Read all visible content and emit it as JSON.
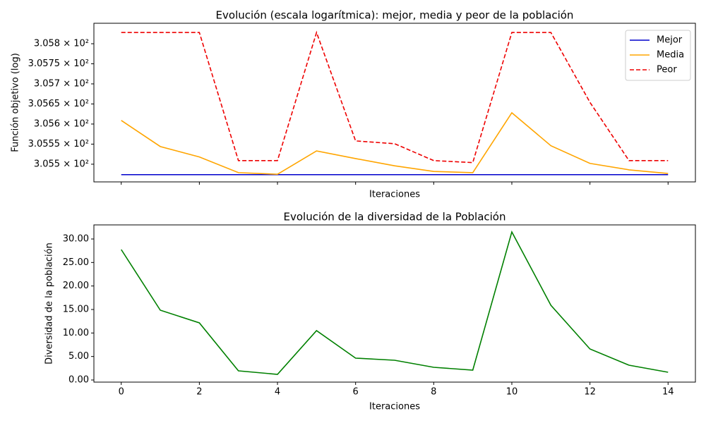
{
  "chart_data": [
    {
      "type": "line",
      "title": "Evolución (escala logarítmica): mejor, media y peor de la población",
      "xlabel": "Iteraciones",
      "ylabel": "Función objetivo (log)",
      "x": [
        0,
        1,
        2,
        3,
        4,
        5,
        6,
        7,
        8,
        9,
        10,
        11,
        12,
        13,
        14
      ],
      "series": [
        {
          "name": "Mejor",
          "color": "#0000cc",
          "linestyle": "solid",
          "values": [
            305.474,
            305.474,
            305.474,
            305.474,
            305.474,
            305.474,
            305.474,
            305.474,
            305.474,
            305.474,
            305.474,
            305.474,
            305.474,
            305.474,
            305.474
          ]
        },
        {
          "name": "Media",
          "color": "#ffa500",
          "linestyle": "solid",
          "values": [
            305.609,
            305.544,
            305.518,
            305.479,
            305.475,
            305.533,
            305.514,
            305.496,
            305.482,
            305.479,
            305.628,
            305.546,
            305.502,
            305.486,
            305.477
          ]
        },
        {
          "name": "Peor",
          "color": "#ee0000",
          "linestyle": "dashed",
          "values": [
            305.828,
            305.828,
            305.828,
            305.509,
            305.509,
            305.828,
            305.558,
            305.551,
            305.509,
            305.504,
            305.828,
            305.828,
            305.654,
            305.509,
            305.509
          ]
        }
      ],
      "xlim": [
        -0.7,
        14.7
      ],
      "ylim": [
        305.456,
        305.851
      ],
      "yscale": "log",
      "xticks": [
        0,
        2,
        4,
        6,
        8,
        10,
        12,
        14
      ],
      "xticklabels": false,
      "yticks": [
        {
          "value": 305.5,
          "label": "3.055 × 10²"
        },
        {
          "value": 305.55,
          "label": "3.0555 × 10²"
        },
        {
          "value": 305.6,
          "label": "3.056 × 10²"
        },
        {
          "value": 305.65,
          "label": "3.0565 × 10²"
        },
        {
          "value": 305.7,
          "label": "3.057 × 10²"
        },
        {
          "value": 305.75,
          "label": "3.0575 × 10²"
        },
        {
          "value": 305.8,
          "label": "3.058 × 10²"
        }
      ],
      "legend": "upper right"
    },
    {
      "type": "line",
      "title": "Evolución de la diversidad de la Población",
      "xlabel": "Iteraciones",
      "ylabel": "Diversidad de la población",
      "x": [
        0,
        1,
        2,
        3,
        4,
        5,
        6,
        7,
        8,
        9,
        10,
        11,
        12,
        13,
        14
      ],
      "series": [
        {
          "name": null,
          "color": "#008000",
          "linestyle": "solid",
          "values": [
            27.75,
            14.85,
            12.15,
            1.95,
            1.2,
            10.5,
            4.65,
            4.2,
            2.7,
            2.1,
            31.5,
            15.9,
            6.6,
            3.15,
            1.65
          ]
        }
      ],
      "xlim": [
        -0.7,
        14.7
      ],
      "ylim": [
        -0.45,
        33.0
      ],
      "yscale": "linear",
      "xticks": [
        0,
        2,
        4,
        6,
        8,
        10,
        12,
        14
      ],
      "xticklabels": true,
      "yticks": [
        {
          "value": 0,
          "label": "0.00"
        },
        {
          "value": 5,
          "label": "5.00"
        },
        {
          "value": 10,
          "label": "10.00"
        },
        {
          "value": 15,
          "label": "15.00"
        },
        {
          "value": 20,
          "label": "20.00"
        },
        {
          "value": 25,
          "label": "25.00"
        },
        {
          "value": 30,
          "label": "30.00"
        }
      ]
    }
  ]
}
